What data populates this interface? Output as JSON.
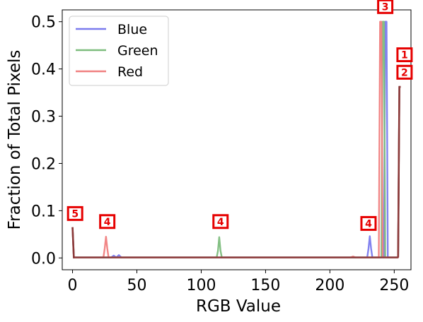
{
  "chart_data": {
    "type": "line",
    "xlabel": "RGB Value",
    "ylabel": "Fraction of Total Pixels",
    "xlim": [
      -8,
      263
    ],
    "ylim": [
      -0.025,
      0.525
    ],
    "xticks": [
      0,
      50,
      100,
      150,
      200,
      250
    ],
    "yticks": [
      0.0,
      0.1,
      0.2,
      0.3,
      0.4,
      0.5
    ],
    "xtick_labels": [
      "0",
      "50",
      "100",
      "150",
      "200",
      "250"
    ],
    "ytick_labels": [
      "0.0",
      "0.1",
      "0.2",
      "0.3",
      "0.4",
      "0.5"
    ],
    "grid": false,
    "legend": "top-left",
    "series": [
      {
        "name": "Blue",
        "color": "#7b7bee",
        "points": [
          [
            0,
            0.065
          ],
          [
            1,
            0.001
          ],
          [
            2,
            0.001
          ],
          [
            30,
            0.001
          ],
          [
            32,
            0.005
          ],
          [
            34,
            0.001
          ],
          [
            36,
            0.006
          ],
          [
            38,
            0.001
          ],
          [
            229,
            0.001
          ],
          [
            230,
            0.02
          ],
          [
            231,
            0.046
          ],
          [
            232,
            0.02
          ],
          [
            233,
            0.001
          ],
          [
            242,
            0.001
          ],
          [
            243,
            0.5
          ],
          [
            244,
            0.5
          ],
          [
            245,
            0.001
          ],
          [
            253,
            0.001
          ],
          [
            254,
            0.362
          ],
          [
            255,
            0.362
          ]
        ]
      },
      {
        "name": "Green",
        "color": "#7dbd7d",
        "points": [
          [
            0,
            0.065
          ],
          [
            1,
            0.001
          ],
          [
            2,
            0.001
          ],
          [
            112,
            0.001
          ],
          [
            113,
            0.015
          ],
          [
            114,
            0.044
          ],
          [
            115,
            0.015
          ],
          [
            116,
            0.001
          ],
          [
            240,
            0.001
          ],
          [
            241,
            0.5
          ],
          [
            242,
            0.5
          ],
          [
            243,
            0.001
          ],
          [
            253,
            0.001
          ],
          [
            254,
            0.362
          ],
          [
            255,
            0.362
          ]
        ]
      },
      {
        "name": "Red",
        "color": "#f08080",
        "points": [
          [
            0,
            0.065
          ],
          [
            1,
            0.001
          ],
          [
            2,
            0.001
          ],
          [
            24,
            0.001
          ],
          [
            25,
            0.02
          ],
          [
            26,
            0.045
          ],
          [
            27,
            0.02
          ],
          [
            28,
            0.001
          ],
          [
            216,
            0.001
          ],
          [
            218,
            0.003
          ],
          [
            220,
            0.001
          ],
          [
            238,
            0.001
          ],
          [
            239,
            0.5
          ],
          [
            240,
            0.5
          ],
          [
            241,
            0.001
          ],
          [
            253,
            0.001
          ],
          [
            254,
            0.362
          ],
          [
            255,
            0.362
          ]
        ]
      }
    ],
    "overlap_color": "#8b3a3a",
    "annotations": [
      {
        "label": "1",
        "x": 258,
        "y": 0.43
      },
      {
        "label": "2",
        "x": 258,
        "y": 0.393
      },
      {
        "label": "3",
        "x": 243,
        "y": 0.532
      },
      {
        "label": "4",
        "x": 27,
        "y": 0.077
      },
      {
        "label": "4",
        "x": 115,
        "y": 0.077
      },
      {
        "label": "4",
        "x": 230,
        "y": 0.073
      },
      {
        "label": "5",
        "x": 2,
        "y": 0.094
      }
    ]
  }
}
